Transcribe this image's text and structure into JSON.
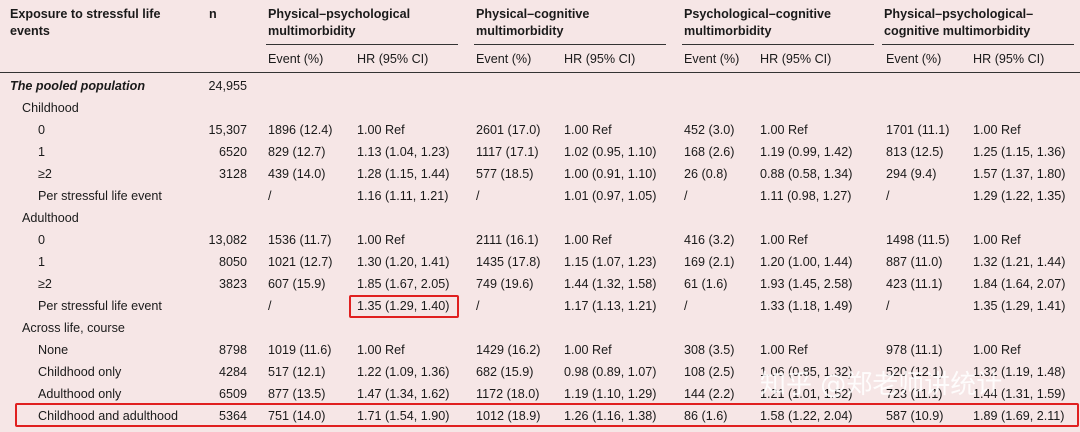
{
  "headers": {
    "exposure": "Exposure to stressful life events",
    "n": "n",
    "groups": [
      "Physical–psychological multimorbidity",
      "Physical–cognitive multimorbidity",
      "Psychological–cognitive multimorbidity",
      "Physical–psychological–cognitive multimorbidity"
    ],
    "sub_event": "Event (%)",
    "sub_hr": "HR (95% CI)"
  },
  "rows": [
    {
      "label": "The pooled population",
      "style": "italic-bold",
      "n": "24,955",
      "cells": [
        "",
        "",
        "",
        "",
        "",
        "",
        "",
        ""
      ]
    },
    {
      "label": "Childhood",
      "style": "section",
      "n": "",
      "cells": [
        "",
        "",
        "",
        "",
        "",
        "",
        "",
        ""
      ]
    },
    {
      "label": "0",
      "style": "item",
      "n": "15,307",
      "cells": [
        "1896 (12.4)",
        "1.00 Ref",
        "2601 (17.0)",
        "1.00 Ref",
        "452 (3.0)",
        "1.00 Ref",
        "1701 (11.1)",
        "1.00 Ref"
      ]
    },
    {
      "label": "1",
      "style": "item",
      "n": "6520",
      "cells": [
        "829 (12.7)",
        "1.13 (1.04, 1.23)",
        "1117 (17.1)",
        "1.02 (0.95, 1.10)",
        "168 (2.6)",
        "1.19 (0.99, 1.42)",
        "813 (12.5)",
        "1.25 (1.15, 1.36)"
      ]
    },
    {
      "label": "≥2",
      "style": "item",
      "n": "3128",
      "cells": [
        "439 (14.0)",
        "1.28 (1.15, 1.44)",
        "577 (18.5)",
        "1.00 (0.91, 1.10)",
        "26 (0.8)",
        "0.88 (0.58, 1.34)",
        "294 (9.4)",
        "1.57 (1.37, 1.80)"
      ]
    },
    {
      "label": "Per stressful life event",
      "style": "item",
      "n": "",
      "cells": [
        "/",
        "1.16 (1.11, 1.21)",
        "/",
        "1.01 (0.97, 1.05)",
        "/",
        "1.11 (0.98, 1.27)",
        "/",
        "1.29 (1.22, 1.35)"
      ]
    },
    {
      "label": "Adulthood",
      "style": "section",
      "n": "",
      "cells": [
        "",
        "",
        "",
        "",
        "",
        "",
        "",
        ""
      ]
    },
    {
      "label": "0",
      "style": "item",
      "n": "13,082",
      "cells": [
        "1536 (11.7)",
        "1.00 Ref",
        "2111 (16.1)",
        "1.00 Ref",
        "416 (3.2)",
        "1.00 Ref",
        "1498 (11.5)",
        "1.00 Ref"
      ]
    },
    {
      "label": "1",
      "style": "item",
      "n": "8050",
      "cells": [
        "1021 (12.7)",
        "1.30 (1.20, 1.41)",
        "1435 (17.8)",
        "1.15 (1.07, 1.23)",
        "169 (2.1)",
        "1.20 (1.00, 1.44)",
        "887 (11.0)",
        "1.32 (1.21, 1.44)"
      ]
    },
    {
      "label": "≥2",
      "style": "item",
      "n": "3823",
      "cells": [
        "607 (15.9)",
        "1.85 (1.67, 2.05)",
        "749 (19.6)",
        "1.44 (1.32, 1.58)",
        "61 (1.6)",
        "1.93 (1.45, 2.58)",
        "423 (11.1)",
        "1.84 (1.64, 2.07)"
      ]
    },
    {
      "label": "Per stressful life event",
      "style": "item",
      "n": "",
      "cells": [
        "/",
        "1.35 (1.29, 1.40)",
        "/",
        "1.17 (1.13, 1.21)",
        "/",
        "1.33 (1.18, 1.49)",
        "/",
        "1.35 (1.29, 1.41)"
      ]
    },
    {
      "label": "Across life, course",
      "style": "section",
      "n": "",
      "cells": [
        "",
        "",
        "",
        "",
        "",
        "",
        "",
        ""
      ]
    },
    {
      "label": "None",
      "style": "item",
      "n": "8798",
      "cells": [
        "1019 (11.6)",
        "1.00 Ref",
        "1429 (16.2)",
        "1.00 Ref",
        "308 (3.5)",
        "1.00 Ref",
        "978 (11.1)",
        "1.00 Ref"
      ]
    },
    {
      "label": "Childhood only",
      "style": "item",
      "n": "4284",
      "cells": [
        "517 (12.1)",
        "1.22 (1.09, 1.36)",
        "682 (15.9)",
        "0.98 (0.89, 1.07)",
        "108 (2.5)",
        "1.06 (0.85, 1.32)",
        "520 (12.1)",
        "1.32 (1.19, 1.48)"
      ]
    },
    {
      "label": "Adulthood only",
      "style": "item",
      "n": "6509",
      "cells": [
        "877 (13.5)",
        "1.47 (1.34, 1.62)",
        "1172 (18.0)",
        "1.19 (1.10, 1.29)",
        "144 (2.2)",
        "1.21 (1.01, 1.52)",
        "723 (11.1)",
        "1.44 (1.31, 1.59)"
      ]
    },
    {
      "label": "Childhood and adulthood",
      "style": "item",
      "n": "5364",
      "cells": [
        "751 (14.0)",
        "1.71 (1.54, 1.90)",
        "1012 (18.9)",
        "1.26 (1.16, 1.38)",
        "86 (1.6)",
        "1.58 (1.22, 2.04)",
        "587 (10.9)",
        "1.89 (1.69, 2.11)"
      ]
    }
  ],
  "watermark": "知乎 @郑老师讲统计"
}
